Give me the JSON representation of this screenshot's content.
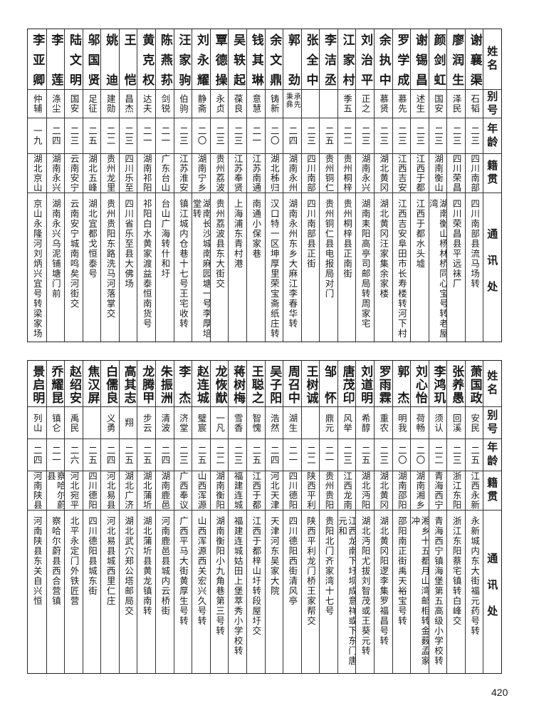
{
  "headers": {
    "name": "姓名",
    "alias": "别号",
    "age": "年龄",
    "native": "籍贯",
    "address": "通讯处"
  },
  "tables": [
    {
      "rows": [
        {
          "name": "谢襄渠",
          "alias": "石韬",
          "age": "二三",
          "native": "四川南部",
          "address": "四川南部县流马场转"
        },
        {
          "name": "廖润生",
          "alias": "泽民",
          "age": "二三",
          "native": "四川荣昌",
          "address": "四川荣昌县平远袜厂"
        },
        {
          "name": "颜剑虹",
          "alias": "国安",
          "age": "二三",
          "native": "湖南衡山",
          "address": "湖南衡山杨林桥同心宝号转老屋湾"
        },
        {
          "name": "谢锡昌",
          "alias": "述生",
          "age": "二三",
          "native": "江西于都",
          "address": "江西于都水头墟"
        },
        {
          "name": "罗学成",
          "alias": "慕先",
          "age": "二三",
          "native": "江西吉安",
          "address": "江西吉安阜田市长寿楼转河下村"
        },
        {
          "name": "余执中",
          "alias": "慕贤",
          "age": "二三",
          "native": "湖北黄冈",
          "address": "湖北黄冈汪家集余家楼"
        },
        {
          "name": "刘治平",
          "alias": "正之",
          "age": "二三",
          "native": "湖南永兴",
          "address": "湖南耒阳高亭司邮局转周家宅"
        },
        {
          "name": "江家村",
          "alias": "季五",
          "age": "二二",
          "native": "贵州桐梓",
          "address": "贵州桐梓县正南街"
        },
        {
          "name": "李洁丞",
          "alias": "",
          "age": "二五",
          "native": "贵州铜仁",
          "address": "贵州铜仁县电报局对门"
        },
        {
          "name": "张全中",
          "alias": "",
          "age": "二三",
          "native": "四川南部",
          "address": "四川南部县正街"
        },
        {
          "name": "郭劲",
          "alias": "承先秉彝",
          "age": "二四",
          "native": "湖南永州",
          "address": "湖南永州东乡大麻江李春华转"
        },
        {
          "name": "余文鼎",
          "alias": "铸新",
          "age": "二〇",
          "native": "湖北秭归",
          "address": "汉口特一区坤厚里荣宝斋纸庄转"
        },
        {
          "name": "钱其琳",
          "alias": "意慧",
          "age": "二一",
          "native": "江苏南通",
          "address": "南通小保家巷"
        },
        {
          "name": "吴轶起",
          "alias": "葆良",
          "age": "二三",
          "native": "江苏奉贤",
          "address": "上海浦东青村港"
        },
        {
          "name": "覃德操",
          "alias": "永贞",
          "age": "二三",
          "native": "贵州荔波",
          "address": "贵州荔波县东大街交"
        },
        {
          "name": "刘永耀",
          "alias": "静斋",
          "age": "二〇",
          "native": "湖南宁乡",
          "address": "湖南长沙城南麻园塘一号李厚培堂转"
        },
        {
          "name": "汪家驹",
          "alias": "伯驹",
          "age": "二三",
          "native": "江苏淮安",
          "address": "镇江城内仓巷十七号王宅收转"
        },
        {
          "name": "陈燕荪",
          "alias": "剑锐",
          "age": "二一",
          "native": "广东台山",
          "address": "台山广海转什和圩"
        },
        {
          "name": "黄克权",
          "alias": "达夫",
          "age": "二一",
          "native": "湖南祁阳",
          "address": "祁阳白水黄家渡益泰恒南货号"
        },
        {
          "name": "王恺",
          "alias": "昌杰",
          "age": "二三",
          "native": "四川乐至",
          "address": "四川省乐至县大佛场"
        },
        {
          "name": "姚迪",
          "alias": "建勋",
          "age": "二二",
          "native": "贵州龙里",
          "address": "贵州贵阳东路洗马河落掌交"
        },
        {
          "name": "邬国贤",
          "alias": "足征",
          "age": "二五",
          "native": "湖北五峰",
          "address": "湖北宜都戈恒泰号"
        },
        {
          "name": "陆文明",
          "alias": "国安",
          "age": "二三",
          "native": "云南安宁",
          "address": "云南安宁城南鸣矣河街交"
        },
        {
          "name": "李莲",
          "alias": "涤尘",
          "age": "二四",
          "native": "湖南永兴",
          "address": "湖南永兴乌泥铺塘门前"
        },
        {
          "name": "李亚卿",
          "alias": "仲辅",
          "age": "一九",
          "native": "湖北京山",
          "address": "京山永隆河刘炳兴宜号转梁家场"
        }
      ]
    },
    {
      "rows": [
        {
          "name": "萧国政",
          "alias": "安民",
          "age": "二五",
          "native": "江西永新",
          "address": "永新城内东大街福元药号转"
        },
        {
          "name": "张养愚",
          "alias": "回溪",
          "age": "二三",
          "native": "浙江东阳",
          "address": "浙江东阳蔡宅镇转白峰交"
        },
        {
          "name": "李鸿玑",
          "alias": "须认",
          "age": "二二",
          "native": "青海西宁",
          "address": "青海西宁镇海堡第五高级小学校转"
        },
        {
          "name": "刘心怡",
          "alias": "荷畅",
          "age": "二〇",
          "native": "湖南湘乡",
          "address": "湘乡十五都月山湾邮柜转金薮孟家冲"
        },
        {
          "name": "郭杰",
          "alias": "明我",
          "age": "二〇",
          "native": "湖南邵阳",
          "address": "邵阳南正街禹天裕宝号转"
        },
        {
          "name": "罗雨霖",
          "alias": "重农",
          "age": "二三",
          "native": "湖北黄冈",
          "address": "湖北黄冈阳逻李集罗福昌号转"
        },
        {
          "name": "刘道明",
          "alias": "希醇",
          "age": "二五",
          "native": "湖北沔阳",
          "address": "湖北沔阳尤拔刘智茂或王葵元转"
        },
        {
          "name": "唐茂印",
          "alias": "风举",
          "age": "二三",
          "native": "江西龙南",
          "address": "江西龙南下圩坝成意祥或下东门唐元和"
        },
        {
          "name": "邹怀",
          "alias": "鼎元",
          "age": "二一",
          "native": "贵州贵阳",
          "address": "贵阳北门齐家湾十七号"
        },
        {
          "name": "王树诚",
          "alias": "",
          "age": "二二",
          "native": "陕西平利",
          "address": "陕西平利龙门桥王家帮交"
        },
        {
          "name": "周召中",
          "alias": "湖生",
          "age": "二一",
          "native": "四川德阳",
          "address": "四川德阳西街清风亭"
        },
        {
          "name": "吴子阳",
          "alias": "浩然",
          "age": "二四",
          "native": "河北天津",
          "address": "天津河东吴家大院"
        },
        {
          "name": "王聪之",
          "alias": "智愧",
          "age": "二五",
          "native": "江西于都",
          "address": "江西于都梓山圩转段屋圩交"
        },
        {
          "name": "蒋树梅",
          "alias": "雪香",
          "age": "二三",
          "native": "福建连城",
          "address": "福建连城姑田上堡萃秀小学校转"
        },
        {
          "name": "龙恢猷",
          "alias": "一凡",
          "age": "二二",
          "native": "湖南衡阳",
          "address": "湖南衡阳小九角巷第三号转"
        },
        {
          "name": "赵连城",
          "alias": "璧宸",
          "age": "二五",
          "native": "山西浑源",
          "address": "山西浑源西关宏兴久号转"
        },
        {
          "name": "李杰",
          "alias": "济堂",
          "age": "二三",
          "native": "广西奉议",
          "address": "广西平马大街黄厚生号转"
        },
        {
          "name": "朱振洲",
          "alias": "清波",
          "age": "二四",
          "native": "湖南鹿邑",
          "address": "河南鹿邑县城内云桥街"
        },
        {
          "name": "龙腾甲",
          "alias": "步云",
          "age": "二五",
          "native": "湖北蒲圻",
          "address": "湖北蒲圻县黄龙镇南转"
        },
        {
          "name": "高其志",
          "alias": "翔",
          "age": "二五",
          "native": "湖北广济",
          "address": "湖北武穴郑公塔邮局交"
        },
        {
          "name": "白儒良",
          "alias": "义勇",
          "age": "二四",
          "native": "河北易县",
          "address": "河北易县城西里仁庄"
        },
        {
          "name": "焦汉屏",
          "alias": "",
          "age": "二五",
          "native": "四川德阳",
          "address": "四川德阳县城东街"
        },
        {
          "name": "赵绍安",
          "alias": "禹民",
          "age": "二六",
          "native": "河北宛平",
          "address": "北平永定门外铁匠营"
        },
        {
          "name": "乔耀昆",
          "alias": "镇仑",
          "age": "二一",
          "native": "察哈尔蔚县",
          "address": "察哈尔蔚县西合营镇"
        },
        {
          "name": "景启明",
          "alias": "列山",
          "age": "二四",
          "native": "河南陕县",
          "address": "河南陕县东关自兴恒"
        }
      ]
    }
  ],
  "page_number": "420"
}
